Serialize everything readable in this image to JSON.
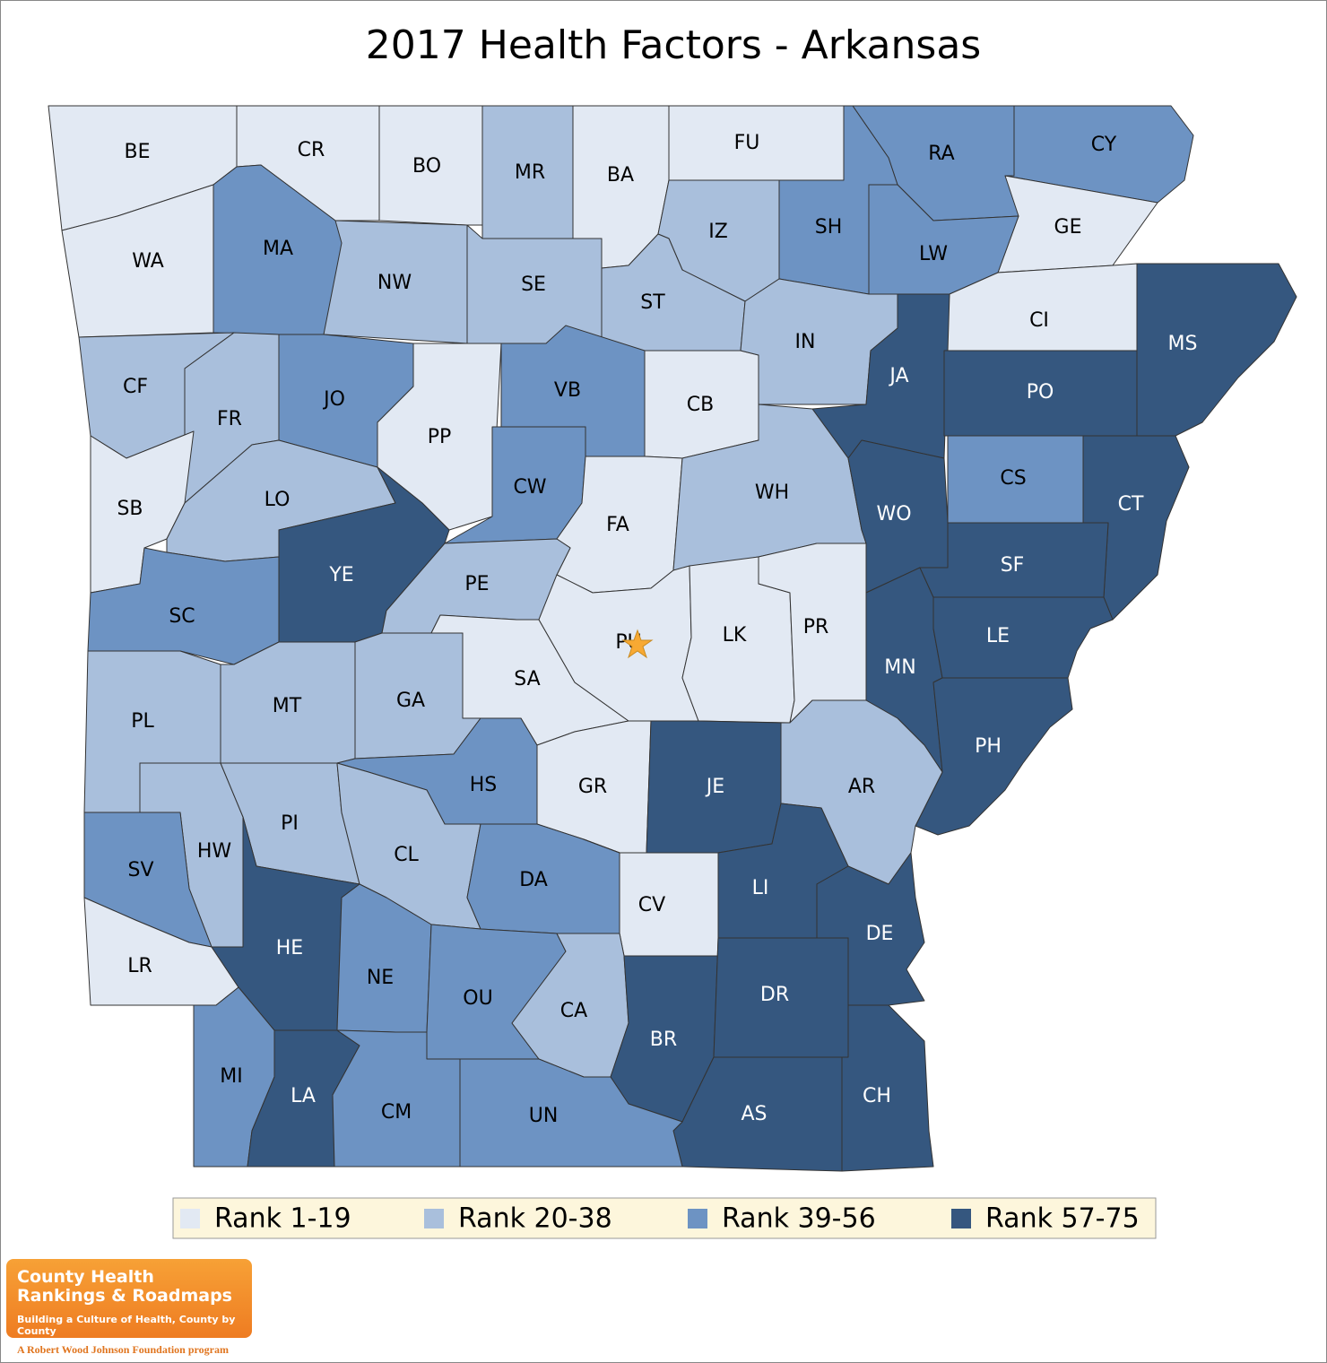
{
  "title": "2017 Health Factors - Arkansas",
  "counties": [
    {
      "label": "BE",
      "color": "#e2e9f3"
    },
    {
      "label": "CR",
      "color": "#e2e9f3"
    },
    {
      "label": "BO",
      "color": "#e2e9f3"
    },
    {
      "label": "MR",
      "color": "#a9bfdc"
    },
    {
      "label": "BA",
      "color": "#e2e9f3"
    },
    {
      "label": "FU",
      "color": "#e2e9f3"
    },
    {
      "label": "RA",
      "color": "#6d93c3"
    },
    {
      "label": "CY",
      "color": "#6d93c3"
    },
    {
      "label": "GE",
      "color": "#e2e9f3"
    },
    {
      "label": "SH",
      "color": "#6d93c3"
    },
    {
      "label": "LW",
      "color": "#6d93c3"
    },
    {
      "label": "IZ",
      "color": "#a9bfdc"
    },
    {
      "label": "ST",
      "color": "#a9bfdc"
    },
    {
      "label": "SE",
      "color": "#a9bfdc"
    },
    {
      "label": "NW",
      "color": "#a9bfdc"
    },
    {
      "label": "MA",
      "color": "#6d93c3"
    },
    {
      "label": "WA",
      "color": "#e2e9f3"
    },
    {
      "label": "CF",
      "color": "#a9bfdc"
    },
    {
      "label": "FR",
      "color": "#a9bfdc"
    },
    {
      "label": "JO",
      "color": "#6d93c3"
    },
    {
      "label": "PP",
      "color": "#e2e9f3"
    },
    {
      "label": "VB",
      "color": "#6d93c3"
    },
    {
      "label": "CB",
      "color": "#e2e9f3"
    },
    {
      "label": "IN",
      "color": "#a9bfdc"
    },
    {
      "label": "CI",
      "color": "#e2e9f3"
    },
    {
      "label": "MS",
      "color": "#35577f"
    },
    {
      "label": "JA",
      "color": "#35577f"
    },
    {
      "label": "PO",
      "color": "#35577f"
    },
    {
      "label": "CS",
      "color": "#6d93c3"
    },
    {
      "label": "CT",
      "color": "#35577f"
    },
    {
      "label": "CW",
      "color": "#6d93c3"
    },
    {
      "label": "FA",
      "color": "#e2e9f3"
    },
    {
      "label": "WH",
      "color": "#a9bfdc"
    },
    {
      "label": "WO",
      "color": "#35577f"
    },
    {
      "label": "SB",
      "color": "#e2e9f3"
    },
    {
      "label": "LO",
      "color": "#a9bfdc"
    },
    {
      "label": "YE",
      "color": "#35577f"
    },
    {
      "label": "SC",
      "color": "#6d93c3"
    },
    {
      "label": "PE",
      "color": "#a9bfdc"
    },
    {
      "label": "SA",
      "color": "#e2e9f3"
    },
    {
      "label": "PU",
      "color": "#e2e9f3"
    },
    {
      "label": "LK",
      "color": "#e2e9f3"
    },
    {
      "label": "PR",
      "color": "#e2e9f3"
    },
    {
      "label": "MN",
      "color": "#35577f"
    },
    {
      "label": "SF",
      "color": "#35577f"
    },
    {
      "label": "LE",
      "color": "#35577f"
    },
    {
      "label": "PH",
      "color": "#35577f"
    },
    {
      "label": "PL",
      "color": "#a9bfdc"
    },
    {
      "label": "MT",
      "color": "#a9bfdc"
    },
    {
      "label": "GA",
      "color": "#a9bfdc"
    },
    {
      "label": "HS",
      "color": "#6d93c3"
    },
    {
      "label": "GR",
      "color": "#e2e9f3"
    },
    {
      "label": "JE",
      "color": "#35577f"
    },
    {
      "label": "AR",
      "color": "#a9bfdc"
    },
    {
      "label": "HW",
      "color": "#a9bfdc"
    },
    {
      "label": "PI",
      "color": "#a9bfdc"
    },
    {
      "label": "CL",
      "color": "#a9bfdc"
    },
    {
      "label": "SV",
      "color": "#6d93c3"
    },
    {
      "label": "LR",
      "color": "#e2e9f3"
    },
    {
      "label": "DA",
      "color": "#6d93c3"
    },
    {
      "label": "CV",
      "color": "#e2e9f3"
    },
    {
      "label": "LI",
      "color": "#35577f"
    },
    {
      "label": "DE",
      "color": "#35577f"
    },
    {
      "label": "HE",
      "color": "#35577f"
    },
    {
      "label": "NE",
      "color": "#6d93c3"
    },
    {
      "label": "OU",
      "color": "#6d93c3"
    },
    {
      "label": "CA",
      "color": "#a9bfdc"
    },
    {
      "label": "BR",
      "color": "#35577f"
    },
    {
      "label": "DR",
      "color": "#35577f"
    },
    {
      "label": "CH",
      "color": "#35577f"
    },
    {
      "label": "AS",
      "color": "#35577f"
    },
    {
      "label": "MI",
      "color": "#6d93c3"
    },
    {
      "label": "LA",
      "color": "#35577f"
    },
    {
      "label": "CM",
      "color": "#6d93c3"
    },
    {
      "label": "UN",
      "color": "#6d93c3"
    }
  ],
  "legend": [
    {
      "label": "Rank 1-19",
      "color": "#e2e9f3"
    },
    {
      "label": "Rank 20-38",
      "color": "#a9bfdc"
    },
    {
      "label": "Rank 39-56",
      "color": "#6d93c3"
    },
    {
      "label": "Rank 57-75",
      "color": "#35577f"
    }
  ],
  "logo": {
    "line1": "County Health",
    "line2": "Rankings & Roadmaps",
    "tagline": "Building a Culture of Health, County by County",
    "sponsor": "A Robert Wood Johnson Foundation program"
  }
}
